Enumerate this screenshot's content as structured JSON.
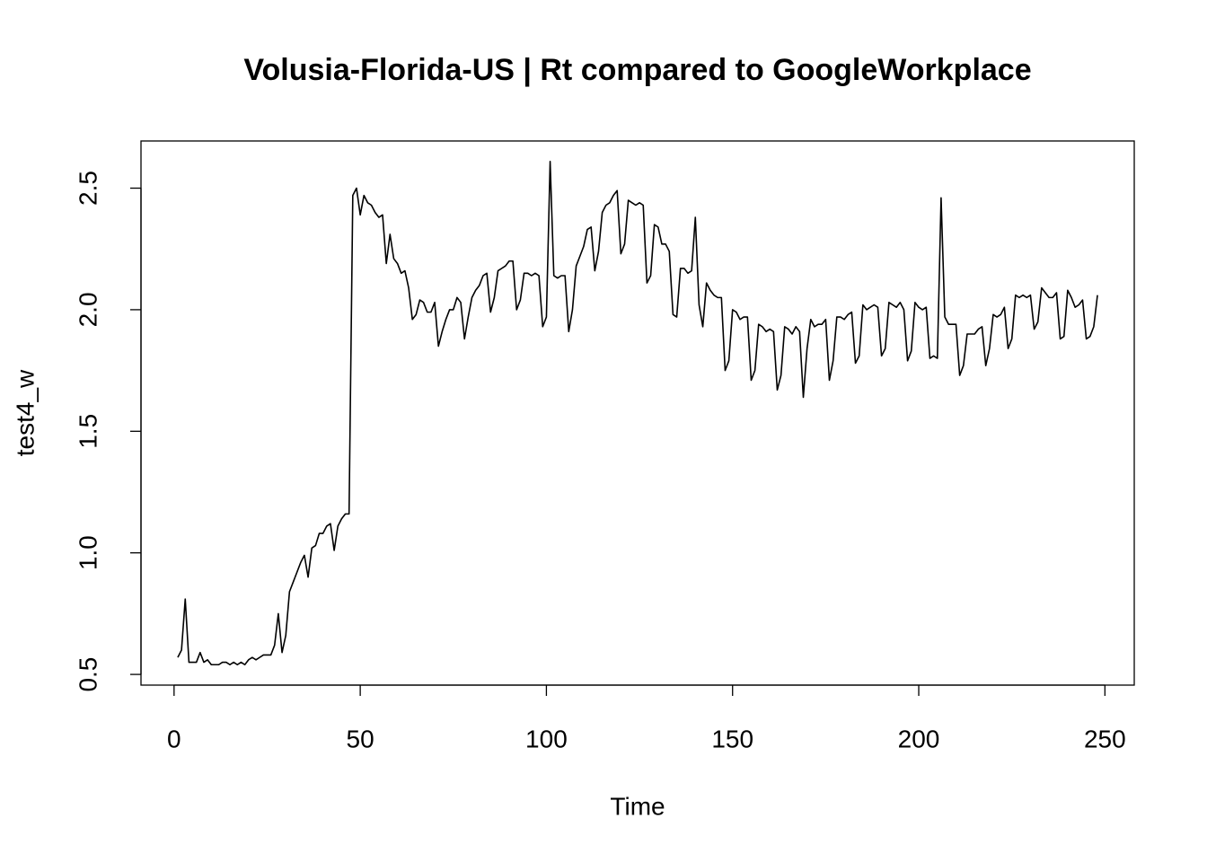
{
  "chart_data": {
    "type": "line",
    "title": "Volusia-Florida-US | Rt compared to GoogleWorkplace",
    "x_label": "Time",
    "y_label": "test4_w",
    "xlim": [
      -8.88,
      257.88
    ],
    "ylim": [
      0.456,
      2.694
    ],
    "xticks": [
      0,
      50,
      100,
      150,
      200,
      250
    ],
    "yticks": [
      0.5,
      {
        "value": 1,
        "label": "1.0"
      },
      1.5,
      {
        "value": 2,
        "label": "2.0"
      },
      2.5
    ],
    "x": [
      1,
      2,
      3,
      4,
      5,
      6,
      7,
      8,
      9,
      10,
      11,
      12,
      13,
      14,
      15,
      16,
      17,
      18,
      19,
      20,
      21,
      22,
      23,
      24,
      25,
      26,
      27,
      28,
      29,
      30,
      31,
      32,
      33,
      34,
      35,
      36,
      37,
      38,
      39,
      40,
      41,
      42,
      43,
      44,
      45,
      46,
      47,
      48,
      49,
      50,
      51,
      52,
      53,
      54,
      55,
      56,
      57,
      58,
      59,
      60,
      61,
      62,
      63,
      64,
      65,
      66,
      67,
      68,
      69,
      70,
      71,
      72,
      73,
      74,
      75,
      76,
      77,
      78,
      79,
      80,
      81,
      82,
      83,
      84,
      85,
      86,
      87,
      88,
      89,
      90,
      91,
      92,
      93,
      94,
      95,
      96,
      97,
      98,
      99,
      100,
      101,
      102,
      103,
      104,
      105,
      106,
      107,
      108,
      109,
      110,
      111,
      112,
      113,
      114,
      115,
      116,
      117,
      118,
      119,
      120,
      121,
      122,
      123,
      124,
      125,
      126,
      127,
      128,
      129,
      130,
      131,
      132,
      133,
      134,
      135,
      136,
      137,
      138,
      139,
      140,
      141,
      142,
      143,
      144,
      145,
      146,
      147,
      148,
      149,
      150,
      151,
      152,
      153,
      154,
      155,
      156,
      157,
      158,
      159,
      160,
      161,
      162,
      163,
      164,
      165,
      166,
      167,
      168,
      169,
      170,
      171,
      172,
      173,
      174,
      175,
      176,
      177,
      178,
      179,
      180,
      181,
      182,
      183,
      184,
      185,
      186,
      187,
      188,
      189,
      190,
      191,
      192,
      193,
      194,
      195,
      196,
      197,
      198,
      199,
      200,
      201,
      202,
      203,
      204,
      205,
      206,
      207,
      208,
      209,
      210,
      211,
      212,
      213,
      214,
      215,
      216,
      217,
      218,
      219,
      220,
      221,
      222,
      223,
      224,
      225,
      226,
      227,
      228,
      229,
      230,
      231,
      232,
      233,
      234,
      235,
      236,
      237,
      238,
      239,
      240,
      241,
      242,
      243,
      244,
      245,
      246,
      247,
      248
    ],
    "series": [
      {
        "color": "#000000",
        "values": [
          0.57,
          0.6,
          0.81,
          0.55,
          0.55,
          0.55,
          0.59,
          0.55,
          0.56,
          0.54,
          0.54,
          0.54,
          0.55,
          0.55,
          0.54,
          0.55,
          0.54,
          0.55,
          0.54,
          0.56,
          0.57,
          0.56,
          0.57,
          0.58,
          0.58,
          0.58,
          0.62,
          0.75,
          0.59,
          0.66,
          0.84,
          0.88,
          0.92,
          0.96,
          0.99,
          0.9,
          1.02,
          1.03,
          1.08,
          1.08,
          1.11,
          1.12,
          1.01,
          1.11,
          1.14,
          1.16,
          1.16,
          2.47,
          2.5,
          2.39,
          2.47,
          2.44,
          2.43,
          2.4,
          2.38,
          2.39,
          2.19,
          2.31,
          2.21,
          2.19,
          2.15,
          2.16,
          2.09,
          1.96,
          1.98,
          2.04,
          2.03,
          1.99,
          1.99,
          2.03,
          1.85,
          1.91,
          1.96,
          2.0,
          2.0,
          2.05,
          2.03,
          1.88,
          1.97,
          2.05,
          2.08,
          2.1,
          2.14,
          2.15,
          1.99,
          2.05,
          2.16,
          2.17,
          2.18,
          2.2,
          2.2,
          2.0,
          2.04,
          2.15,
          2.15,
          2.14,
          2.15,
          2.14,
          1.93,
          1.97,
          2.61,
          2.14,
          2.13,
          2.14,
          2.14,
          1.91,
          2.0,
          2.18,
          2.22,
          2.26,
          2.33,
          2.34,
          2.16,
          2.24,
          2.4,
          2.43,
          2.44,
          2.47,
          2.49,
          2.23,
          2.27,
          2.45,
          2.44,
          2.43,
          2.44,
          2.43,
          2.11,
          2.14,
          2.35,
          2.34,
          2.27,
          2.27,
          2.24,
          1.98,
          1.97,
          2.17,
          2.17,
          2.15,
          2.16,
          2.38,
          2.02,
          1.93,
          2.11,
          2.08,
          2.06,
          2.05,
          2.05,
          1.75,
          1.79,
          2.0,
          1.99,
          1.96,
          1.97,
          1.97,
          1.71,
          1.75,
          1.94,
          1.93,
          1.91,
          1.92,
          1.91,
          1.67,
          1.73,
          1.93,
          1.92,
          1.9,
          1.93,
          1.91,
          1.64,
          1.84,
          1.96,
          1.93,
          1.94,
          1.94,
          1.96,
          1.71,
          1.79,
          1.97,
          1.97,
          1.96,
          1.98,
          1.99,
          1.78,
          1.81,
          2.02,
          2.0,
          2.01,
          2.02,
          2.01,
          1.81,
          1.84,
          2.03,
          2.02,
          2.01,
          2.03,
          2.0,
          1.79,
          1.83,
          2.03,
          2.01,
          2.0,
          2.01,
          1.8,
          1.81,
          1.8,
          2.46,
          1.97,
          1.94,
          1.94,
          1.94,
          1.73,
          1.77,
          1.9,
          1.9,
          1.9,
          1.92,
          1.93,
          1.77,
          1.84,
          1.98,
          1.97,
          1.98,
          2.01,
          1.84,
          1.88,
          2.06,
          2.05,
          2.06,
          2.05,
          2.06,
          1.92,
          1.95,
          2.09,
          2.07,
          2.05,
          2.05,
          2.07,
          1.88,
          1.89,
          2.08,
          2.05,
          2.01,
          2.02,
          2.04,
          1.88,
          1.89,
          1.93,
          2.06
        ]
      }
    ]
  }
}
